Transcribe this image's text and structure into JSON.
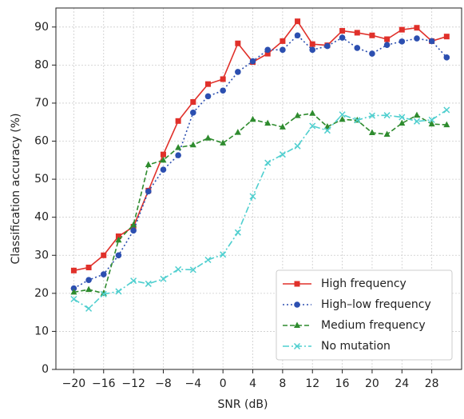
{
  "chart_data": {
    "type": "line",
    "xlabel": "SNR (dB)",
    "ylabel": "Classification accuracy (%)",
    "x": [
      -20,
      -18,
      -16,
      -14,
      -12,
      -10,
      -8,
      -6,
      -4,
      -2,
      0,
      2,
      4,
      6,
      8,
      10,
      12,
      14,
      16,
      18,
      20,
      22,
      24,
      26,
      28,
      30
    ],
    "series": [
      {
        "name": "High frequency",
        "color": "#e0302a",
        "linestyle": "solid",
        "marker": "square",
        "values": [
          26,
          26.8,
          30,
          35,
          37.5,
          47,
          56.5,
          65.3,
          70.3,
          75,
          76.3,
          85.7,
          80.8,
          83,
          86.3,
          91.5,
          85.5,
          85.2,
          89,
          88.5,
          87.8,
          86.8,
          89.3,
          89.8,
          86.3,
          87.5
        ]
      },
      {
        "name": "High–low frequency",
        "color": "#2c4fb0",
        "linestyle": "dotted",
        "marker": "circle",
        "values": [
          21.3,
          23.5,
          25,
          30,
          36.5,
          46.8,
          52.5,
          56.3,
          67.5,
          71.8,
          73.3,
          78.2,
          81,
          84,
          84,
          87.8,
          84,
          85,
          87.2,
          84.5,
          83,
          85.3,
          86.2,
          87,
          86.3,
          82
        ]
      },
      {
        "name": "Medium frequency",
        "color": "#2e8b2e",
        "linestyle": "dashed",
        "marker": "triangle",
        "values": [
          20.3,
          21,
          20,
          34,
          38,
          53.8,
          55,
          58.3,
          59,
          60.8,
          59.5,
          62.3,
          65.7,
          64.7,
          63.7,
          66.7,
          67.3,
          63.8,
          65.7,
          65.5,
          62.2,
          61.8,
          64.7,
          66.8,
          64.5,
          64.3
        ]
      },
      {
        "name": "No mutation",
        "color": "#4fcfcf",
        "linestyle": "dashdot",
        "marker": "x",
        "values": [
          18.5,
          16,
          19.8,
          20.5,
          23.3,
          22.5,
          23.8,
          26.3,
          26.2,
          28.8,
          30.2,
          36,
          45.5,
          54.3,
          56.5,
          58.7,
          64,
          62.8,
          67,
          65.5,
          66.7,
          66.8,
          66.3,
          65.2,
          65.6,
          68.2
        ]
      }
    ],
    "xlim": [
      -22.4,
      32
    ],
    "ylim": [
      0,
      95
    ],
    "xticks": [
      {
        "value": -20,
        "label": "−20"
      },
      {
        "value": -16,
        "label": "−16"
      },
      {
        "value": -12,
        "label": "−12"
      },
      {
        "value": -8,
        "label": "−8"
      },
      {
        "value": -4,
        "label": "−4"
      },
      0,
      4,
      8,
      12,
      16,
      20,
      24,
      28
    ],
    "yticks": [
      0,
      10,
      20,
      30,
      40,
      50,
      60,
      70,
      80,
      90
    ],
    "grid": true,
    "legend": "lower right"
  }
}
